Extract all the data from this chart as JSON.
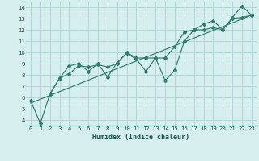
{
  "title": "",
  "xlabel": "Humidex (Indice chaleur)",
  "ylabel": "",
  "bg_color": "#d6eeee",
  "grid_color": "#b0d8d8",
  "line_color": "#2e7d6e",
  "marker_color": "#2e7d6e",
  "xlim": [
    -0.5,
    23.5
  ],
  "ylim": [
    3.5,
    14.5
  ],
  "xticks": [
    0,
    1,
    2,
    3,
    4,
    5,
    6,
    7,
    8,
    9,
    10,
    11,
    12,
    13,
    14,
    15,
    16,
    17,
    18,
    19,
    20,
    21,
    22,
    23
  ],
  "yticks": [
    4,
    5,
    6,
    7,
    8,
    9,
    10,
    11,
    12,
    13,
    14
  ],
  "series": [
    {
      "x": [
        0,
        1,
        2,
        3,
        4,
        5,
        6,
        7,
        8,
        9,
        10,
        11,
        12,
        13,
        14,
        15,
        16,
        17,
        18,
        19,
        20,
        21,
        22,
        23
      ],
      "y": [
        5.7,
        3.7,
        6.3,
        7.7,
        8.8,
        9.0,
        8.3,
        9.0,
        7.8,
        9.1,
        9.9,
        9.4,
        8.3,
        9.5,
        7.5,
        8.4,
        11.0,
        12.0,
        12.5,
        12.8,
        12.0,
        13.1,
        14.1,
        13.3
      ]
    },
    {
      "x": [
        2,
        3,
        4,
        5,
        6,
        7,
        8,
        9,
        10,
        11,
        12,
        13,
        14,
        15,
        16,
        17,
        18,
        19,
        20,
        21,
        22,
        23
      ],
      "y": [
        6.3,
        7.7,
        8.1,
        8.8,
        8.7,
        8.9,
        8.7,
        9.0,
        10.0,
        9.5,
        9.5,
        9.5,
        9.5,
        10.5,
        11.8,
        12.0,
        12.0,
        12.2,
        12.0,
        13.0,
        13.1,
        13.3
      ]
    },
    {
      "x": [
        0,
        23
      ],
      "y": [
        5.5,
        13.3
      ]
    }
  ]
}
